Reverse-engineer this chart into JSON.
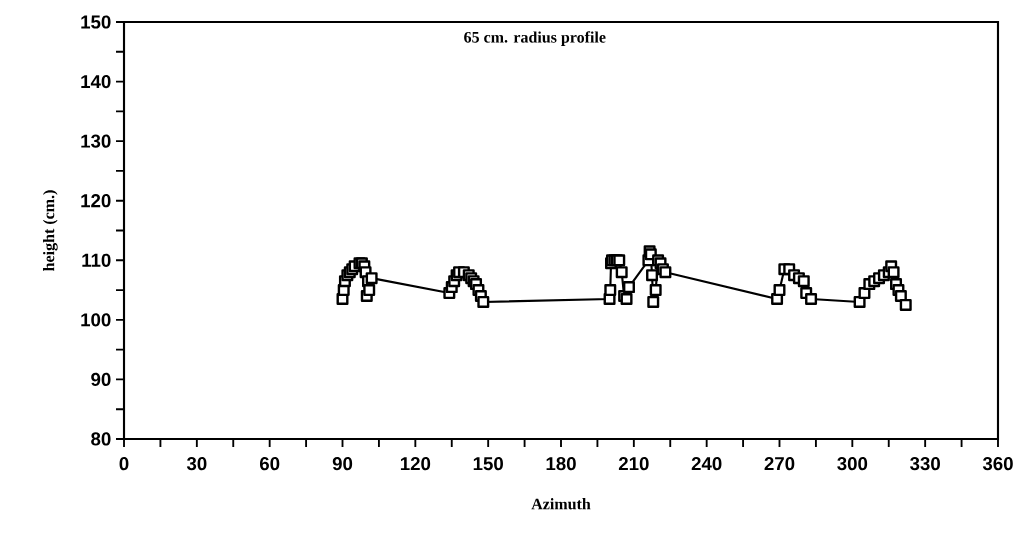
{
  "chart_data": {
    "type": "line",
    "title": "65 cm. radius profile",
    "xlabel": "Azimuth",
    "ylabel": "height (cm.)",
    "x": [
      90,
      90.5,
      91,
      92,
      93,
      94,
      95,
      97,
      98,
      99,
      99.5,
      100,
      100.5,
      101,
      102,
      134,
      135,
      136,
      137,
      138,
      140,
      142,
      143,
      144,
      145,
      146,
      147,
      148,
      200,
      200.3,
      200.6,
      201,
      202,
      203,
      204,
      205,
      206,
      207,
      208,
      216,
      216.5,
      217,
      217.5,
      218,
      219,
      220,
      221,
      222,
      223,
      269,
      270,
      272,
      274,
      276,
      278,
      280,
      281,
      283,
      303,
      305,
      307,
      309,
      311,
      313,
      315,
      316,
      317,
      318,
      319,
      320,
      322
    ],
    "series": [
      {
        "color": "#000000",
        "values": [
          103.5,
          105,
          106.5,
          107.5,
          108,
          108.5,
          109,
          109.5,
          109.5,
          109,
          108,
          104,
          106.5,
          105,
          107,
          104.5,
          105.5,
          106.5,
          107.5,
          108,
          108,
          107.5,
          107,
          106.5,
          106,
          105,
          104,
          103,
          103.5,
          105,
          109.5,
          110,
          110,
          110,
          110,
          108,
          104,
          103.5,
          105.5,
          110,
          111.5,
          111,
          107.5,
          103,
          105,
          110,
          109.5,
          108.5,
          108,
          103.5,
          105,
          108.5,
          108.5,
          107.5,
          107,
          106.5,
          104.5,
          103.5,
          103,
          104.5,
          106,
          106.5,
          107,
          107.5,
          108,
          109,
          108,
          106,
          105,
          104,
          102.5
        ]
      }
    ],
    "marker": "square",
    "line_style": "solid",
    "grid": false,
    "xlim": [
      0,
      360
    ],
    "ylim": [
      80,
      150
    ],
    "xticks": [
      0,
      {
        "value": 15,
        "label": null
      },
      30,
      {
        "value": 45,
        "label": null
      },
      60,
      {
        "value": 75,
        "label": null
      },
      90,
      {
        "value": 105,
        "label": null
      },
      120,
      {
        "value": 135,
        "label": null
      },
      150,
      {
        "value": 165,
        "label": null
      },
      180,
      {
        "value": 195,
        "label": null
      },
      210,
      {
        "value": 225,
        "label": null
      },
      240,
      {
        "value": 255,
        "label": null
      },
      270,
      {
        "value": 285,
        "label": null
      },
      300,
      {
        "value": 315,
        "label": null
      },
      330,
      {
        "value": 345,
        "label": null
      },
      360
    ],
    "yticks": [
      80,
      {
        "value": 85,
        "label": null
      },
      90,
      {
        "value": 95,
        "label": null
      },
      100,
      {
        "value": 105,
        "label": null
      },
      110,
      {
        "value": 115,
        "label": null
      },
      120,
      {
        "value": 125,
        "label": null
      },
      130,
      {
        "value": 135,
        "label": null
      },
      140,
      {
        "value": 145,
        "label": null
      },
      150
    ]
  }
}
